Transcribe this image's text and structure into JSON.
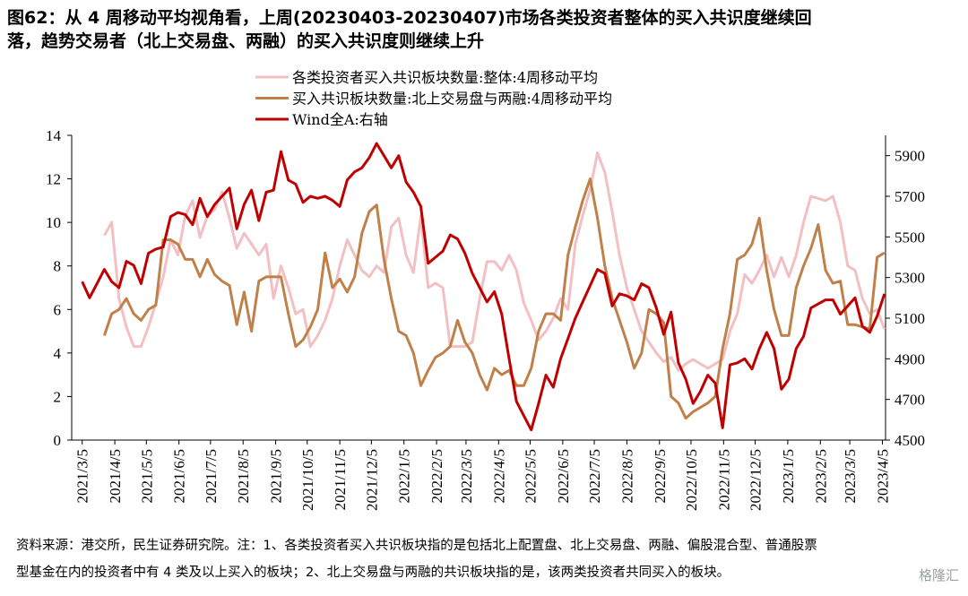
{
  "chart_data": {
    "type": "line",
    "title": "图62：从 4 周移动平均视角看，上周(20230403-20230407)市场各类投资者整体的买入共识度继续回",
    "subtitle": "落，趋势交易者（北上交易盘、两融）的买入共识度则继续上升",
    "note": "资料来源：港交所，民生证券研究院。注：1、各类投资者买入共识板块指的是包括北上配置盘、北上交易盘、两融、偏股混合型、普通股票",
    "note2": "型基金在内的投资者中有 4 类及以上买入的板块；2、北上交易盘与两融的共识板块指的是，该两类投资者共同买入的板块。",
    "watermark": "格隆汇",
    "x": [
      "2021-03-05",
      "2021-03-12",
      "2021-03-19",
      "2021-03-26",
      "2021-04-02",
      "2021-04-09",
      "2021-04-16",
      "2021-04-23",
      "2021-04-30",
      "2021-05-07",
      "2021-05-14",
      "2021-05-21",
      "2021-05-28",
      "2021-06-04",
      "2021-06-11",
      "2021-06-18",
      "2021-06-25",
      "2021-07-02",
      "2021-07-09",
      "2021-07-16",
      "2021-07-23",
      "2021-07-30",
      "2021-08-06",
      "2021-08-13",
      "2021-08-20",
      "2021-08-27",
      "2021-09-03",
      "2021-09-10",
      "2021-09-17",
      "2021-09-24",
      "2021-10-01",
      "2021-10-08",
      "2021-10-15",
      "2021-10-22",
      "2021-10-29",
      "2021-11-05",
      "2021-11-12",
      "2021-11-19",
      "2021-11-26",
      "2021-12-03",
      "2021-12-10",
      "2021-12-17",
      "2021-12-24",
      "2021-12-31",
      "2022-01-07",
      "2022-01-14",
      "2022-01-21",
      "2022-01-28",
      "2022-02-04",
      "2022-02-11",
      "2022-02-18",
      "2022-02-25",
      "2022-03-04",
      "2022-03-11",
      "2022-03-18",
      "2022-03-25",
      "2022-04-01",
      "2022-04-08",
      "2022-04-15",
      "2022-04-22",
      "2022-04-29",
      "2022-05-06",
      "2022-05-13",
      "2022-05-20",
      "2022-05-27",
      "2022-06-03",
      "2022-06-10",
      "2022-06-17",
      "2022-06-24",
      "2022-07-01",
      "2022-07-08",
      "2022-07-15",
      "2022-07-22",
      "2022-07-29",
      "2022-08-05",
      "2022-08-12",
      "2022-08-19",
      "2022-08-26",
      "2022-09-02",
      "2022-09-09",
      "2022-09-16",
      "2022-09-23",
      "2022-09-30",
      "2022-10-07",
      "2022-10-14",
      "2022-10-21",
      "2022-10-28",
      "2022-11-04",
      "2022-11-11",
      "2022-11-18",
      "2022-11-25",
      "2022-12-02",
      "2022-12-09",
      "2022-12-16",
      "2022-12-23",
      "2022-12-30",
      "2023-01-06",
      "2023-01-13",
      "2023-01-20",
      "2023-01-27",
      "2023-02-03",
      "2023-02-10",
      "2023-02-17",
      "2023-02-24",
      "2023-03-03",
      "2023-03-10",
      "2023-03-17",
      "2023-03-24",
      "2023-03-31",
      "2023-04-07"
    ],
    "series": [
      {
        "name": "各类投资者买入共识板块数量:整体:4周移动平均",
        "color": "#f2bfc3",
        "values": [
          null,
          null,
          null,
          9.4,
          10.0,
          6.5,
          5.2,
          4.3,
          4.3,
          5.2,
          6.3,
          7.5,
          9.2,
          8.5,
          10.3,
          11.0,
          9.3,
          10.3,
          10.6,
          11.4,
          10.2,
          8.8,
          9.5,
          9.0,
          8.5,
          9.0,
          6.5,
          8.0,
          7.0,
          5.8,
          6.0,
          4.3,
          4.8,
          5.5,
          6.5,
          8.0,
          9.2,
          8.5,
          7.8,
          7.5,
          8.0,
          7.7,
          9.8,
          10.2,
          8.5,
          7.7,
          10.3,
          7.0,
          7.2,
          7.0,
          4.3,
          4.3,
          4.3,
          4.5,
          6.5,
          8.2,
          8.2,
          7.8,
          8.5,
          7.8,
          6.3,
          5.5,
          4.6,
          5.0,
          5.6,
          6.5,
          6.0,
          9.0,
          10.3,
          11.5,
          13.2,
          12.3,
          10.5,
          8.5,
          7.0,
          6.0,
          5.0,
          4.5,
          4.0,
          3.6,
          3.8,
          3.2,
          3.5,
          3.7,
          3.5,
          3.3,
          3.5,
          3.7,
          5.0,
          5.8,
          7.6,
          7.2,
          7.8,
          8.5,
          7.5,
          8.4,
          7.5,
          8.5,
          10.0,
          11.2,
          11.1,
          11.0,
          11.2,
          10.0,
          8.0,
          7.8,
          6.5,
          5.8,
          6.0,
          5.1
        ]
      },
      {
        "name": "买入共识板块数量:北上交易盘与两融:4周移动平均",
        "color": "#c0804a",
        "values": [
          null,
          null,
          null,
          4.8,
          5.8,
          6.0,
          6.5,
          5.8,
          5.5,
          6.0,
          6.2,
          9.2,
          9.2,
          9.0,
          8.3,
          8.3,
          7.5,
          8.3,
          7.6,
          7.3,
          7.1,
          5.3,
          6.8,
          5.0,
          7.3,
          7.5,
          7.5,
          7.5,
          5.8,
          4.3,
          4.6,
          5.2,
          6.0,
          8.6,
          7.0,
          7.4,
          6.8,
          7.5,
          9.5,
          10.5,
          10.8,
          8.3,
          6.5,
          5.0,
          4.8,
          4.0,
          2.5,
          3.2,
          3.8,
          4.0,
          4.3,
          5.5,
          4.5,
          4.0,
          3.0,
          2.3,
          3.3,
          3.0,
          3.2,
          2.5,
          2.5,
          3.3,
          5.0,
          5.8,
          5.8,
          5.5,
          8.5,
          9.8,
          11.0,
          12.0,
          10.2,
          8.0,
          6.5,
          5.5,
          4.5,
          3.3,
          4.0,
          6.0,
          5.8,
          5.4,
          2.0,
          1.7,
          1.0,
          1.3,
          1.5,
          1.7,
          2.0,
          4.2,
          5.8,
          8.3,
          8.5,
          9.0,
          10.2,
          7.8,
          6.0,
          4.8,
          4.8,
          7.0,
          8.0,
          8.8,
          9.9,
          7.8,
          7.2,
          7.3,
          5.3,
          5.3,
          5.2,
          5.1,
          8.4,
          8.6
        ]
      },
      {
        "name": "Wind全A:右轴",
        "color": "#c00000",
        "axis": "y2",
        "values": [
          5280,
          5200,
          5270,
          5340,
          5280,
          5250,
          5380,
          5360,
          5270,
          5420,
          5440,
          5450,
          5600,
          5620,
          5610,
          5560,
          5690,
          5600,
          5660,
          5700,
          5740,
          5540,
          5660,
          5730,
          5580,
          5720,
          5730,
          5920,
          5780,
          5760,
          5670,
          5700,
          5690,
          5700,
          5680,
          5650,
          5780,
          5820,
          5840,
          5890,
          5960,
          5900,
          5840,
          5900,
          5770,
          5720,
          5650,
          5370,
          5400,
          5430,
          5510,
          5490,
          5420,
          5320,
          5250,
          5180,
          5230,
          5120,
          4900,
          4690,
          4620,
          4550,
          4680,
          4820,
          4760,
          4900,
          5000,
          5100,
          5180,
          5260,
          5340,
          5320,
          5160,
          5220,
          5210,
          5190,
          5270,
          5250,
          5150,
          5020,
          5130,
          4880,
          4800,
          4680,
          4740,
          4820,
          4780,
          4560,
          4870,
          4880,
          4900,
          4850,
          4950,
          5030,
          4950,
          4750,
          4800,
          4950,
          5010,
          5150,
          5170,
          5190,
          5190,
          5120,
          5160,
          5200,
          5060,
          5030,
          5110,
          5220
        ]
      }
    ],
    "xlim": [
      "2021-02-23",
      "2023-04-08"
    ],
    "xticks": [
      {
        "value": "2021-03-05",
        "label": "2021/3/5"
      },
      {
        "value": "2021-04-05",
        "label": "2021/4/5"
      },
      {
        "value": "2021-05-05",
        "label": "2021/5/5"
      },
      {
        "value": "2021-06-05",
        "label": "2021/6/5"
      },
      {
        "value": "2021-07-05",
        "label": "2021/7/5"
      },
      {
        "value": "2021-08-05",
        "label": "2021/8/5"
      },
      {
        "value": "2021-09-05",
        "label": "2021/9/5"
      },
      {
        "value": "2021-10-05",
        "label": "2021/10/5"
      },
      {
        "value": "2021-11-05",
        "label": "2021/11/5"
      },
      {
        "value": "2021-12-05",
        "label": "2021/12/5"
      },
      {
        "value": "2022-01-05",
        "label": "2022/1/5"
      },
      {
        "value": "2022-02-05",
        "label": "2022/2/5"
      },
      {
        "value": "2022-03-05",
        "label": "2022/3/5"
      },
      {
        "value": "2022-04-05",
        "label": "2022/4/5"
      },
      {
        "value": "2022-05-05",
        "label": "2022/5/5"
      },
      {
        "value": "2022-06-05",
        "label": "2022/6/5"
      },
      {
        "value": "2022-07-05",
        "label": "2022/7/5"
      },
      {
        "value": "2022-08-05",
        "label": "2022/8/5"
      },
      {
        "value": "2022-09-05",
        "label": "2022/9/5"
      },
      {
        "value": "2022-10-05",
        "label": "2022/10/5"
      },
      {
        "value": "2022-11-05",
        "label": "2022/11/5"
      },
      {
        "value": "2022-12-05",
        "label": "2022/12/5"
      },
      {
        "value": "2023-01-05",
        "label": "2023/1/5"
      },
      {
        "value": "2023-02-05",
        "label": "2023/2/5"
      },
      {
        "value": "2023-03-05",
        "label": "2023/3/5"
      },
      {
        "value": "2023-04-05",
        "label": "2023/4/5"
      }
    ],
    "ylim": [
      0,
      14
    ],
    "yticks": [
      0,
      2,
      4,
      6,
      8,
      10,
      12,
      14
    ],
    "y2lim": [
      4500,
      6000
    ],
    "y2ticks": [
      4500,
      4700,
      4900,
      5100,
      5300,
      5500,
      5700,
      5900
    ],
    "legend": "top"
  }
}
